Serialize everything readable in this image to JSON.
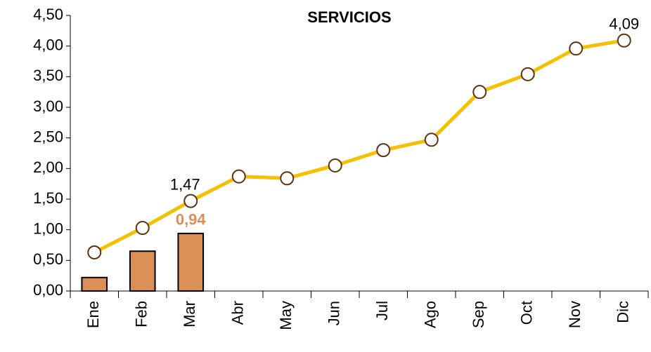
{
  "chart_data": {
    "type": "bar",
    "title": "SERVICIOS",
    "categories": [
      "Ene",
      "Feb",
      "Mar",
      "Abr",
      "May",
      "Jun",
      "Jul",
      "Ago",
      "Sep",
      "Oct",
      "Nov",
      "Dic"
    ],
    "series": [
      {
        "type": "bar",
        "color": "#d98f56",
        "values": [
          0.22,
          0.65,
          0.94,
          null,
          null,
          null,
          null,
          null,
          null,
          null,
          null,
          null
        ],
        "value_labels": [
          null,
          null,
          "0,94",
          null,
          null,
          null,
          null,
          null,
          null,
          null,
          null,
          null
        ]
      },
      {
        "type": "line",
        "color": "#f5c000",
        "values": [
          0.63,
          1.03,
          1.47,
          1.87,
          1.84,
          2.05,
          2.3,
          2.47,
          3.25,
          3.54,
          3.96,
          4.09
        ],
        "value_labels": [
          null,
          null,
          "1,47",
          null,
          null,
          null,
          null,
          null,
          null,
          null,
          null,
          "4,09"
        ]
      }
    ],
    "ylim": [
      0,
      4.5
    ],
    "yticks": [
      {
        "value": 0,
        "label": "0,00"
      },
      {
        "value": 0.5,
        "label": "0,50"
      },
      {
        "value": 1,
        "label": "1,00"
      },
      {
        "value": 1.5,
        "label": "1,50"
      },
      {
        "value": 2,
        "label": "2,00"
      },
      {
        "value": 2.5,
        "label": "2,50"
      },
      {
        "value": 3,
        "label": "3,00"
      },
      {
        "value": 3.5,
        "label": "3,50"
      },
      {
        "value": 4,
        "label": "4,00"
      },
      {
        "value": 4.5,
        "label": "4,50"
      }
    ],
    "grid": false
  }
}
